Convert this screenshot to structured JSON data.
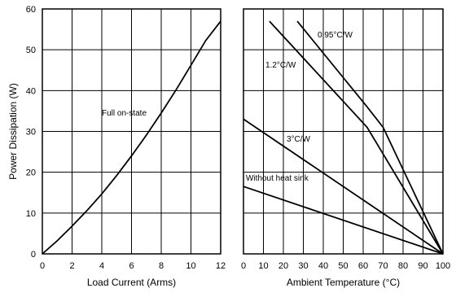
{
  "chart_data": [
    {
      "type": "line",
      "xlabel": "Load Current (Arms)",
      "ylabel": "Power Dissipation (W)",
      "xlim": [
        0,
        12
      ],
      "ylim": [
        0,
        60
      ],
      "xticks": [
        0,
        2,
        4,
        6,
        8,
        10,
        12
      ],
      "yticks": [
        0,
        10,
        20,
        30,
        40,
        50,
        60
      ],
      "grid": true,
      "series": [
        {
          "name": "Full on-state",
          "x": [
            0,
            1,
            2,
            3,
            4,
            5,
            6,
            7,
            8,
            9,
            10,
            11,
            12
          ],
          "y": [
            0,
            3.2,
            6.8,
            10.6,
            14.7,
            19.2,
            24,
            29.1,
            34.5,
            40.2,
            46.2,
            52.3,
            57
          ]
        }
      ],
      "annotations": [
        {
          "text": "Full on-state",
          "series": 0
        }
      ]
    },
    {
      "type": "line",
      "xlabel": "Ambient Temperature (°C)",
      "ylabel": "",
      "xlim": [
        0,
        100
      ],
      "ylim": [
        0,
        60
      ],
      "xticks": [
        0,
        10,
        20,
        30,
        40,
        50,
        60,
        70,
        80,
        90,
        100
      ],
      "yticks": [
        0,
        10,
        20,
        30,
        40,
        50,
        60
      ],
      "grid": true,
      "series": [
        {
          "name": "0.95°C/W",
          "x": [
            27,
            62,
            70,
            100
          ],
          "y": [
            57,
            36,
            31,
            0
          ]
        },
        {
          "name": "1.2°C/W",
          "x": [
            13,
            62,
            100
          ],
          "y": [
            57,
            31,
            0
          ]
        },
        {
          "name": "3°C/W",
          "x": [
            0,
            100
          ],
          "y": [
            33,
            0
          ]
        },
        {
          "name": "Without heat sink",
          "x": [
            0,
            100
          ],
          "y": [
            16.5,
            0
          ]
        }
      ],
      "annotations": [
        {
          "text": "0.95°C/W",
          "series": 0
        },
        {
          "text": "1.2°C/W",
          "series": 1
        },
        {
          "text": "3°C/W",
          "series": 2
        },
        {
          "text": "Without heat sink",
          "series": 3
        }
      ]
    }
  ]
}
